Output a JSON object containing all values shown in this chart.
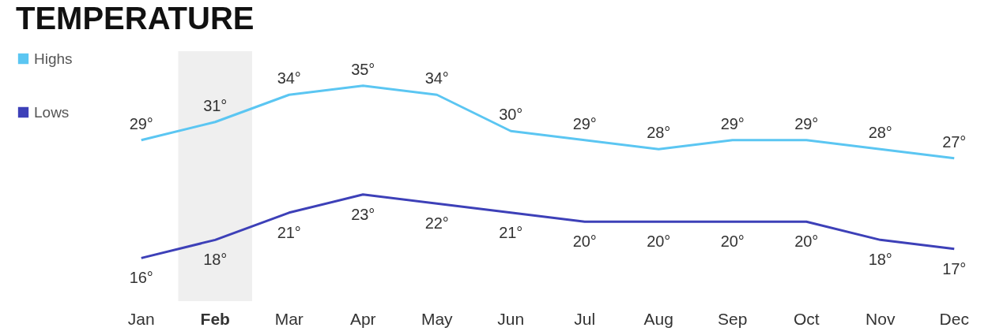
{
  "chart_data": {
    "type": "line",
    "title": "TEMPERATURE",
    "categories": [
      "Jan",
      "Feb",
      "Mar",
      "Apr",
      "May",
      "Jun",
      "Jul",
      "Aug",
      "Sep",
      "Oct",
      "Nov",
      "Dec"
    ],
    "series": [
      {
        "name": "Highs",
        "color": "#5bc6f2",
        "values": [
          29,
          31,
          34,
          35,
          34,
          30,
          29,
          28,
          29,
          29,
          28,
          27
        ],
        "value_labels": [
          "29°",
          "31°",
          "34°",
          "35°",
          "34°",
          "30°",
          "29°",
          "28°",
          "29°",
          "29°",
          "28°",
          "27°"
        ]
      },
      {
        "name": "Lows",
        "color": "#3d40b8",
        "values": [
          16,
          18,
          21,
          23,
          22,
          21,
          20,
          20,
          20,
          20,
          18,
          17
        ],
        "value_labels": [
          "16°",
          "18°",
          "21°",
          "23°",
          "22°",
          "21°",
          "20°",
          "20°",
          "20°",
          "20°",
          "18°",
          "17°"
        ]
      }
    ],
    "bands": [
      {
        "axis": "x",
        "from": "Feb",
        "to": "Feb",
        "color": "#efefef"
      }
    ],
    "legend": "left",
    "grid": false,
    "marker": "none",
    "tick_labels": "x"
  }
}
